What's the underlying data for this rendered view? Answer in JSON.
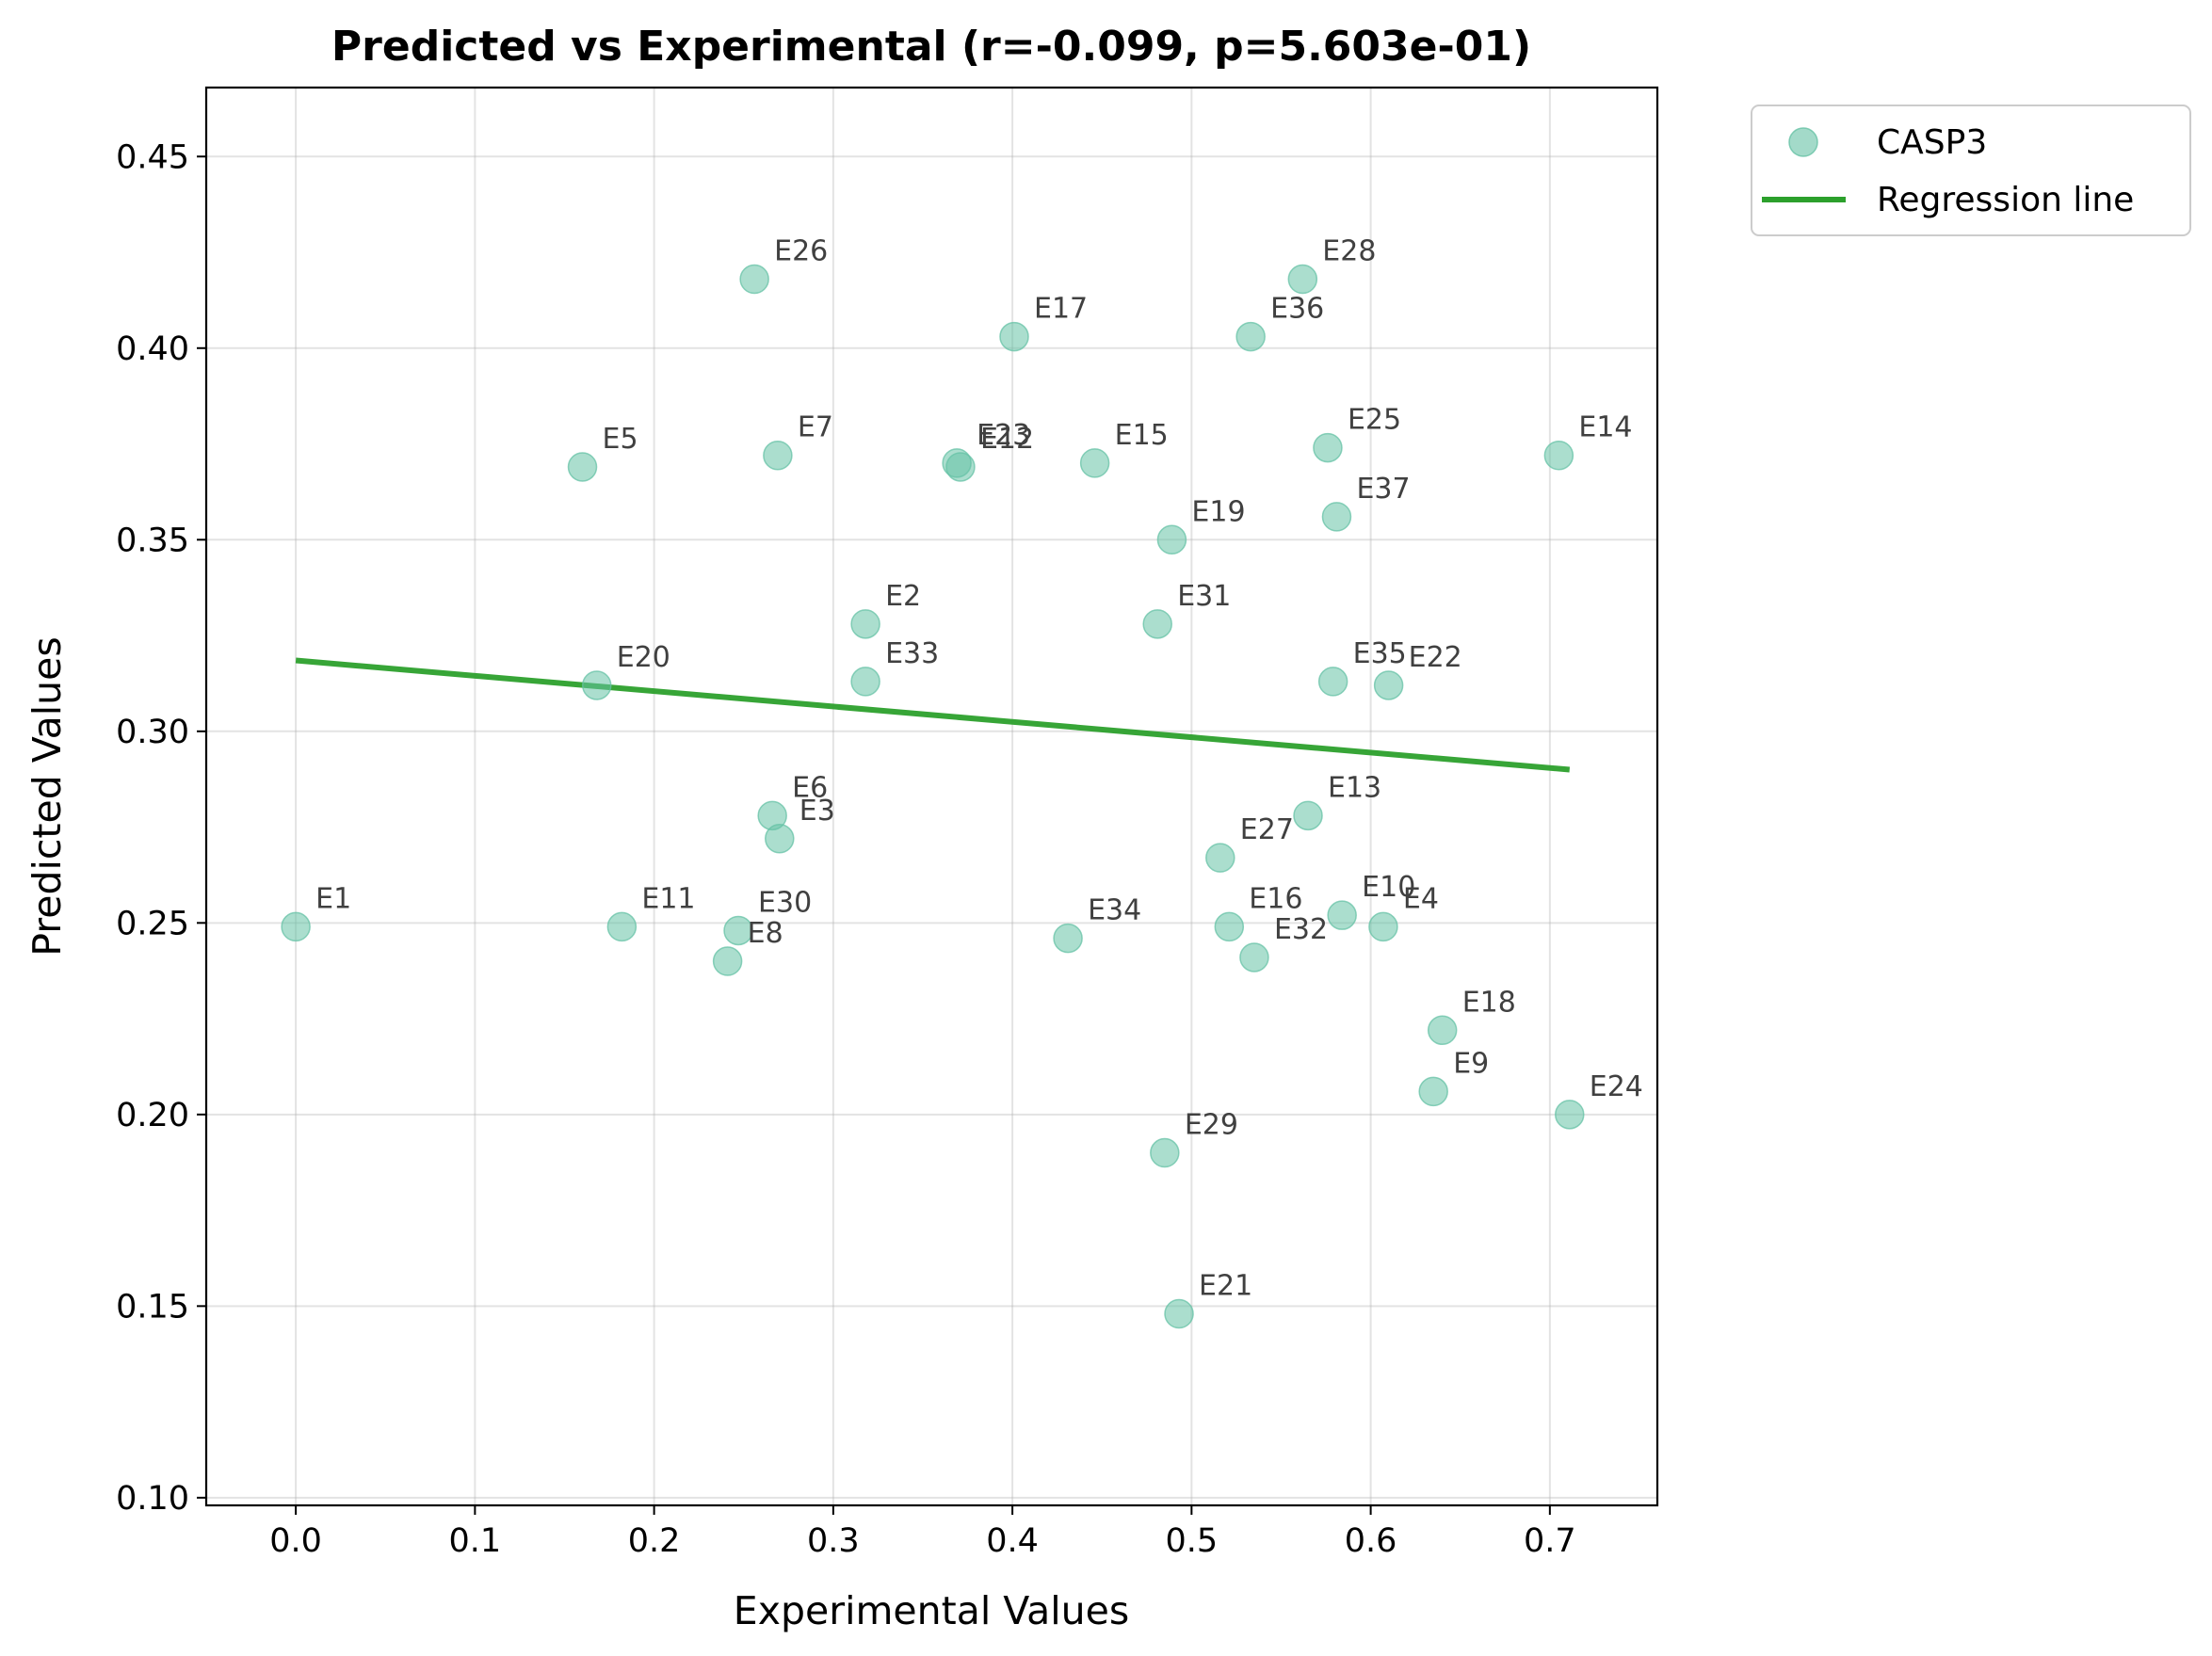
{
  "chart_data": {
    "type": "scatter",
    "title": "Predicted vs Experimental (r=-0.099, p=5.603e-01)",
    "xlabel": "Experimental Values",
    "ylabel": "Predicted Values",
    "xlim": [
      -0.05,
      0.76
    ],
    "ylim": [
      0.098,
      0.468
    ],
    "x_ticks": [
      "0.0",
      "0.1",
      "0.2",
      "0.3",
      "0.4",
      "0.5",
      "0.6",
      "0.7"
    ],
    "x_tick_values": [
      0.0,
      0.1,
      0.2,
      0.3,
      0.4,
      0.5,
      0.6,
      0.7
    ],
    "y_ticks": [
      "0.10",
      "0.15",
      "0.20",
      "0.25",
      "0.30",
      "0.35",
      "0.40",
      "0.45"
    ],
    "y_tick_values": [
      0.1,
      0.15,
      0.2,
      0.25,
      0.3,
      0.35,
      0.4,
      0.45
    ],
    "grid": true,
    "legend_position": "outside-top-right",
    "series": [
      {
        "name": "CASP3",
        "kind": "scatter",
        "color": "#66c2a5",
        "points": [
          {
            "label": "E1",
            "x": 0.0,
            "y": 0.249
          },
          {
            "label": "E2",
            "x": 0.318,
            "y": 0.328
          },
          {
            "label": "E3",
            "x": 0.27,
            "y": 0.272
          },
          {
            "label": "E4",
            "x": 0.607,
            "y": 0.249
          },
          {
            "label": "E5",
            "x": 0.16,
            "y": 0.369
          },
          {
            "label": "E6",
            "x": 0.266,
            "y": 0.278
          },
          {
            "label": "E7",
            "x": 0.269,
            "y": 0.372
          },
          {
            "label": "E8",
            "x": 0.241,
            "y": 0.24
          },
          {
            "label": "E9",
            "x": 0.635,
            "y": 0.206
          },
          {
            "label": "E10",
            "x": 0.584,
            "y": 0.252
          },
          {
            "label": "E11",
            "x": 0.182,
            "y": 0.249
          },
          {
            "label": "E12",
            "x": 0.371,
            "y": 0.369
          },
          {
            "label": "E13",
            "x": 0.565,
            "y": 0.278
          },
          {
            "label": "E14",
            "x": 0.705,
            "y": 0.372
          },
          {
            "label": "E15",
            "x": 0.446,
            "y": 0.37
          },
          {
            "label": "E16",
            "x": 0.521,
            "y": 0.249
          },
          {
            "label": "E17",
            "x": 0.401,
            "y": 0.403
          },
          {
            "label": "E18",
            "x": 0.64,
            "y": 0.222
          },
          {
            "label": "E19",
            "x": 0.489,
            "y": 0.35
          },
          {
            "label": "E20",
            "x": 0.168,
            "y": 0.312
          },
          {
            "label": "E21",
            "x": 0.493,
            "y": 0.148
          },
          {
            "label": "E22",
            "x": 0.61,
            "y": 0.312
          },
          {
            "label": "E23",
            "x": 0.369,
            "y": 0.37
          },
          {
            "label": "E24",
            "x": 0.711,
            "y": 0.2
          },
          {
            "label": "E25",
            "x": 0.576,
            "y": 0.374
          },
          {
            "label": "E26",
            "x": 0.256,
            "y": 0.418
          },
          {
            "label": "E27",
            "x": 0.516,
            "y": 0.267
          },
          {
            "label": "E28",
            "x": 0.562,
            "y": 0.418
          },
          {
            "label": "E29",
            "x": 0.485,
            "y": 0.19
          },
          {
            "label": "E30",
            "x": 0.247,
            "y": 0.248
          },
          {
            "label": "E31",
            "x": 0.481,
            "y": 0.328
          },
          {
            "label": "E32",
            "x": 0.535,
            "y": 0.241
          },
          {
            "label": "E33",
            "x": 0.318,
            "y": 0.313
          },
          {
            "label": "E34",
            "x": 0.431,
            "y": 0.246
          },
          {
            "label": "E35",
            "x": 0.579,
            "y": 0.313
          },
          {
            "label": "E36",
            "x": 0.533,
            "y": 0.403
          },
          {
            "label": "E37",
            "x": 0.581,
            "y": 0.356
          }
        ]
      },
      {
        "name": "Regression line",
        "kind": "line",
        "color": "#2ca02c",
        "x": [
          0.0,
          0.711
        ],
        "y": [
          0.3185,
          0.29
        ]
      }
    ]
  }
}
